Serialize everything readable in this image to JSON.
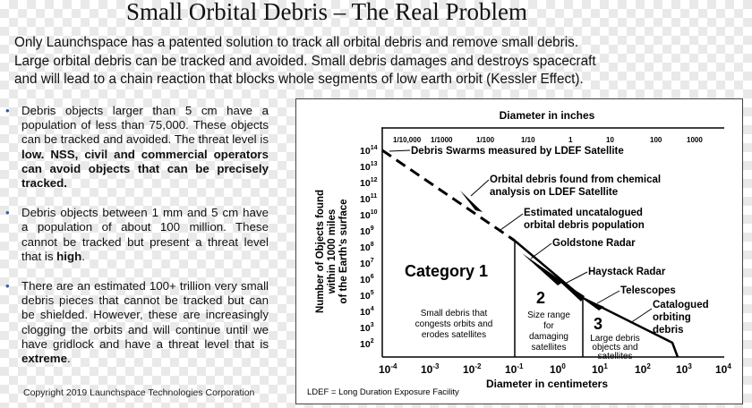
{
  "title": "Small Orbital Debris – The Real Problem",
  "intro": [
    "Only Launchspace has a patented solution to track all orbital debris and remove small debris.",
    "Large orbital debris can be tracked and avoided. Small debris damages and destroys spacecraft",
    "and will lead to a chain reaction that blocks whole segments of low earth orbit (Kessler Effect)."
  ],
  "bullets": [
    {
      "text": "Debris objects larger than 5 cm have a population of less than 75,000. These objects can be tracked and avoided. The threat level is ",
      "bold": "low. NSS, civil and commercial operators can avoid objects that can be precisely tracked."
    },
    {
      "text": "Debris objects between 1 mm and 5 cm have a population of about 100 million. These cannot be tracked but present a threat level that is ",
      "bold": "high",
      "after": "."
    },
    {
      "text": "There are an estimated 100+ trillion very small debris pieces that cannot be tracked but can be shielded. However, these are increasingly clogging the orbits and will continue until we have gridlock and have a threat level that is ",
      "bold": "extreme",
      "after": "."
    }
  ],
  "copyright": "Copyright 2019 Launchspace Technologies Corporation",
  "chart": {
    "top_axis_title": "Diameter in inches",
    "top_ticks": [
      "1/10,000",
      "1/1000",
      "1/100",
      "1/10",
      "1",
      "10",
      "100",
      "1000"
    ],
    "bottom_axis_title": "Diameter in centimeters",
    "bottom_ticks": [
      {
        "base": "10",
        "exp": "-4"
      },
      {
        "base": "10",
        "exp": "-3"
      },
      {
        "base": "10",
        "exp": "-2"
      },
      {
        "base": "10",
        "exp": "-1"
      },
      {
        "base": "10",
        "exp": "0"
      },
      {
        "base": "10",
        "exp": "1"
      },
      {
        "base": "10",
        "exp": "2"
      },
      {
        "base": "10",
        "exp": "3"
      },
      {
        "base": "10",
        "exp": "4"
      }
    ],
    "y_title_lines": [
      "Number of Objects found",
      "within 1000 miles",
      "of the Earth's surface"
    ],
    "y_ticks": [
      {
        "base": "10",
        "exp": "14"
      },
      {
        "base": "10",
        "exp": "13"
      },
      {
        "base": "10",
        "exp": "12"
      },
      {
        "base": "10",
        "exp": "11"
      },
      {
        "base": "10",
        "exp": "10"
      },
      {
        "base": "10",
        "exp": "9"
      },
      {
        "base": "10",
        "exp": "8"
      },
      {
        "base": "10",
        "exp": "7"
      },
      {
        "base": "10",
        "exp": "6"
      },
      {
        "base": "10",
        "exp": "5"
      },
      {
        "base": "10",
        "exp": "4"
      },
      {
        "base": "10",
        "exp": "3"
      },
      {
        "base": "10",
        "exp": "2"
      }
    ],
    "annotations": {
      "ldef_swarms": "Debris Swarms measured by LDEF Satellite",
      "orbital_debris_1": "Orbital debris found from chemical",
      "orbital_debris_2": "analysis on LDEF Satellite",
      "estimated_1": "Estimated uncatalogued",
      "estimated_2": "orbital debris population",
      "goldstone": "Goldstone Radar",
      "haystack": "Haystack Radar",
      "telescopes": "Telescopes",
      "catalogued_1": "Catalogued",
      "catalogued_2": "orbiting",
      "catalogued_3": "debris"
    },
    "regions": {
      "category1": "Category 1",
      "category1_desc": [
        "Small debris that",
        "congests orbits and",
        "erodes satellites"
      ],
      "region2": "2",
      "region2_desc": [
        "Size range",
        "for",
        "damaging",
        "satellites"
      ],
      "region3": "3",
      "region3_desc": [
        "Large debris",
        "objects and",
        "satellites"
      ]
    },
    "footnote": "LDEF = Long Duration Exposure Facility"
  }
}
